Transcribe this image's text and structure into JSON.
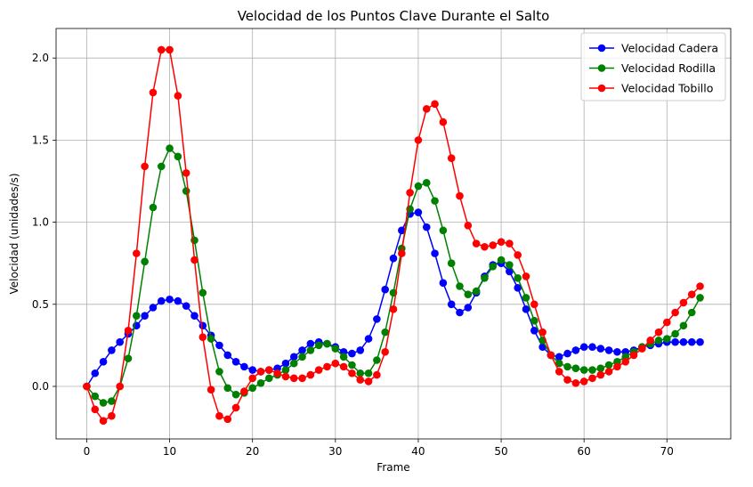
{
  "chart_data": {
    "type": "line",
    "title": "Velocidad de los Puntos Clave Durante el Salto",
    "xlabel": "Frame",
    "ylabel": "Velocidad (unidades/s)",
    "xlim": [
      -3.7,
      77.7
    ],
    "ylim": [
      -0.32,
      2.18
    ],
    "xticks": [
      0,
      10,
      20,
      30,
      40,
      50,
      60,
      70
    ],
    "yticks": [
      0.0,
      0.5,
      1.0,
      1.5,
      2.0
    ],
    "ytick_labels": [
      "0.0",
      "0.5",
      "1.0",
      "1.5",
      "2.0"
    ],
    "grid": true,
    "legend_position": "top-right",
    "x": [
      0,
      1,
      2,
      3,
      4,
      5,
      6,
      7,
      8,
      9,
      10,
      11,
      12,
      13,
      14,
      15,
      16,
      17,
      18,
      19,
      20,
      21,
      22,
      23,
      24,
      25,
      26,
      27,
      28,
      29,
      30,
      31,
      32,
      33,
      34,
      35,
      36,
      37,
      38,
      39,
      40,
      41,
      42,
      43,
      44,
      45,
      46,
      47,
      48,
      49,
      50,
      51,
      52,
      53,
      54,
      55,
      56,
      57,
      58,
      59,
      60,
      61,
      62,
      63,
      64,
      65,
      66,
      67,
      68,
      69,
      70,
      71,
      72,
      73,
      74
    ],
    "series": [
      {
        "name": "Velocidad Cadera",
        "color": "#0000ff",
        "values": [
          0.0,
          0.08,
          0.15,
          0.22,
          0.27,
          0.32,
          0.37,
          0.43,
          0.48,
          0.52,
          0.53,
          0.52,
          0.49,
          0.43,
          0.37,
          0.31,
          0.25,
          0.19,
          0.15,
          0.12,
          0.1,
          0.09,
          0.1,
          0.11,
          0.14,
          0.18,
          0.22,
          0.26,
          0.27,
          0.26,
          0.24,
          0.21,
          0.2,
          0.22,
          0.29,
          0.41,
          0.59,
          0.78,
          0.95,
          1.05,
          1.06,
          0.97,
          0.81,
          0.63,
          0.5,
          0.45,
          0.48,
          0.57,
          0.67,
          0.74,
          0.75,
          0.7,
          0.6,
          0.47,
          0.34,
          0.24,
          0.19,
          0.18,
          0.2,
          0.22,
          0.24,
          0.24,
          0.23,
          0.22,
          0.21,
          0.21,
          0.22,
          0.24,
          0.25,
          0.26,
          0.27,
          0.27,
          0.27,
          0.27,
          0.27
        ]
      },
      {
        "name": "Velocidad Rodilla",
        "color": "#008000",
        "values": [
          0.0,
          -0.06,
          -0.1,
          -0.09,
          0.0,
          0.17,
          0.43,
          0.76,
          1.09,
          1.34,
          1.45,
          1.4,
          1.19,
          0.89,
          0.57,
          0.29,
          0.09,
          -0.01,
          -0.05,
          -0.04,
          -0.01,
          0.02,
          0.05,
          0.07,
          0.1,
          0.14,
          0.18,
          0.22,
          0.25,
          0.26,
          0.23,
          0.18,
          0.13,
          0.08,
          0.08,
          0.16,
          0.33,
          0.57,
          0.84,
          1.08,
          1.22,
          1.24,
          1.13,
          0.95,
          0.75,
          0.61,
          0.56,
          0.58,
          0.66,
          0.73,
          0.77,
          0.74,
          0.66,
          0.54,
          0.4,
          0.28,
          0.19,
          0.14,
          0.12,
          0.11,
          0.1,
          0.1,
          0.11,
          0.13,
          0.15,
          0.18,
          0.21,
          0.24,
          0.26,
          0.28,
          0.29,
          0.32,
          0.37,
          0.45,
          0.54
        ]
      },
      {
        "name": "Velocidad Tobillo",
        "color": "#ff0000",
        "values": [
          0.0,
          -0.14,
          -0.21,
          -0.18,
          0.0,
          0.34,
          0.81,
          1.34,
          1.79,
          2.05,
          2.05,
          1.77,
          1.3,
          0.77,
          0.3,
          -0.02,
          -0.18,
          -0.2,
          -0.13,
          -0.03,
          0.05,
          0.09,
          0.1,
          0.08,
          0.06,
          0.05,
          0.05,
          0.07,
          0.1,
          0.12,
          0.14,
          0.12,
          0.08,
          0.04,
          0.03,
          0.07,
          0.21,
          0.47,
          0.81,
          1.18,
          1.5,
          1.69,
          1.72,
          1.61,
          1.39,
          1.16,
          0.98,
          0.87,
          0.85,
          0.86,
          0.88,
          0.87,
          0.8,
          0.67,
          0.5,
          0.33,
          0.19,
          0.09,
          0.04,
          0.02,
          0.03,
          0.05,
          0.07,
          0.09,
          0.12,
          0.15,
          0.19,
          0.23,
          0.28,
          0.33,
          0.39,
          0.45,
          0.51,
          0.56,
          0.61
        ]
      }
    ]
  }
}
